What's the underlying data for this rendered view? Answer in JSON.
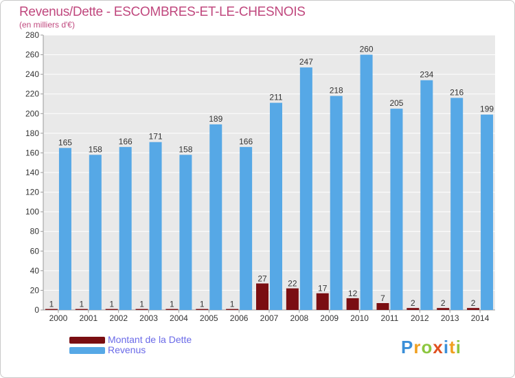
{
  "title": "Revenus/Dette - ESCOMBRES-ET-LE-CHESNOIS",
  "subtitle": "(en milliers d'€)",
  "chart_data": {
    "type": "bar",
    "categories": [
      "2000",
      "2001",
      "2002",
      "2003",
      "2004",
      "2005",
      "2006",
      "2007",
      "2008",
      "2009",
      "2010",
      "2011",
      "2012",
      "2013",
      "2014"
    ],
    "series": [
      {
        "name": "Montant de la Dette",
        "color": "#7a0e12",
        "values": [
          1,
          1,
          1,
          1,
          1,
          1,
          1,
          27,
          22,
          17,
          12,
          7,
          2,
          2,
          2
        ]
      },
      {
        "name": "Revenus",
        "color": "#56a8e6",
        "values": [
          165,
          158,
          166,
          171,
          158,
          189,
          166,
          211,
          247,
          218,
          260,
          205,
          234,
          216,
          199
        ]
      }
    ],
    "ylim": [
      0,
      280
    ],
    "yticks": [
      0,
      20,
      40,
      60,
      80,
      100,
      120,
      140,
      160,
      180,
      200,
      220,
      240,
      260,
      280
    ],
    "grid": true
  },
  "legend": {
    "items": [
      {
        "label": "Montant de la Dette",
        "color": "#7a0e12"
      },
      {
        "label": "Revenus",
        "color": "#56a8e6"
      }
    ]
  },
  "logo": {
    "letters": [
      {
        "ch": "P",
        "color": "#3a8fd8"
      },
      {
        "ch": "r",
        "color": "#f0a020"
      },
      {
        "ch": "o",
        "color": "#8cc63f"
      },
      {
        "ch": "x",
        "color": "#e05020"
      },
      {
        "ch": "i",
        "color": "#3a8fd8"
      },
      {
        "ch": "t",
        "color": "#f0a020"
      },
      {
        "ch": "i",
        "color": "#8cc63f"
      }
    ]
  }
}
